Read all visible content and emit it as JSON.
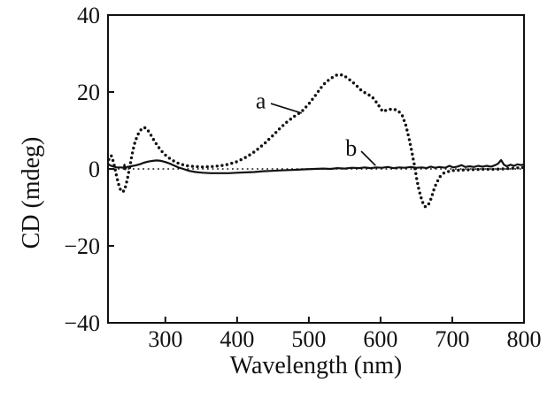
{
  "figure": {
    "background": "#ffffff",
    "ink_color": "#111111"
  },
  "chart_data": {
    "type": "line",
    "title": "",
    "xlabel": "Wavelength (nm)",
    "ylabel": "CD (mdeg)",
    "xlim": [
      220,
      800
    ],
    "ylim": [
      -40,
      40
    ],
    "x_ticks": [
      300,
      400,
      500,
      600,
      700,
      800
    ],
    "x_tick_labels": [
      "300",
      "400",
      "500",
      "600",
      "700",
      "800"
    ],
    "y_ticks": [
      40,
      20,
      0,
      -20,
      -40
    ],
    "y_tick_labels": [
      "40",
      "20",
      "0",
      "−20",
      "−40"
    ],
    "grid": false,
    "zero_line": {
      "show": true,
      "style": "dotted",
      "y": 0
    },
    "frame": true,
    "legend_position": "none",
    "series": [
      {
        "name": "a",
        "style": "dotted",
        "color": "#111111",
        "points": [
          [
            220,
            1.2
          ],
          [
            222,
            3.2
          ],
          [
            225,
            3.4
          ],
          [
            228,
            1.5
          ],
          [
            231,
            -1.0
          ],
          [
            234,
            -3.5
          ],
          [
            237,
            -5.2
          ],
          [
            240,
            -6.0
          ],
          [
            243,
            -5.6
          ],
          [
            246,
            -3.5
          ],
          [
            249,
            -0.8
          ],
          [
            252,
            2.2
          ],
          [
            255,
            5.0
          ],
          [
            258,
            7.2
          ],
          [
            262,
            9.0
          ],
          [
            266,
            10.2
          ],
          [
            270,
            10.8
          ],
          [
            274,
            10.5
          ],
          [
            278,
            9.4
          ],
          [
            283,
            7.8
          ],
          [
            288,
            6.3
          ],
          [
            294,
            4.8
          ],
          [
            300,
            3.6
          ],
          [
            307,
            2.6
          ],
          [
            314,
            1.8
          ],
          [
            322,
            1.2
          ],
          [
            331,
            0.8
          ],
          [
            341,
            0.6
          ],
          [
            352,
            0.5
          ],
          [
            364,
            0.6
          ],
          [
            376,
            0.8
          ],
          [
            388,
            1.2
          ],
          [
            400,
            1.9
          ],
          [
            410,
            2.8
          ],
          [
            420,
            3.9
          ],
          [
            430,
            5.3
          ],
          [
            440,
            6.9
          ],
          [
            450,
            8.7
          ],
          [
            460,
            10.6
          ],
          [
            470,
            12.3
          ],
          [
            480,
            13.7
          ],
          [
            490,
            14.9
          ],
          [
            500,
            16.9
          ],
          [
            508,
            18.8
          ],
          [
            516,
            20.9
          ],
          [
            524,
            22.6
          ],
          [
            532,
            23.7
          ],
          [
            540,
            24.5
          ],
          [
            548,
            24.4
          ],
          [
            556,
            23.3
          ],
          [
            564,
            22.1
          ],
          [
            572,
            20.6
          ],
          [
            580,
            19.6
          ],
          [
            588,
            18.8
          ],
          [
            596,
            16.9
          ],
          [
            603,
            14.9
          ],
          [
            610,
            15.4
          ],
          [
            617,
            15.6
          ],
          [
            624,
            15.2
          ],
          [
            630,
            14.0
          ],
          [
            635,
            11.5
          ],
          [
            639,
            8.5
          ],
          [
            643,
            5.0
          ],
          [
            647,
            1.2
          ],
          [
            650,
            -2.2
          ],
          [
            653,
            -5.0
          ],
          [
            656,
            -7.2
          ],
          [
            659,
            -8.8
          ],
          [
            662,
            -9.8
          ],
          [
            666,
            -9.6
          ],
          [
            670,
            -7.9
          ],
          [
            674,
            -5.6
          ],
          [
            678,
            -3.6
          ],
          [
            683,
            -2.0
          ],
          [
            688,
            -1.1
          ],
          [
            694,
            -0.7
          ],
          [
            702,
            -0.4
          ],
          [
            712,
            -0.3
          ],
          [
            725,
            -0.2
          ],
          [
            740,
            -0.1
          ],
          [
            755,
            -0.1
          ],
          [
            770,
            0.0
          ],
          [
            785,
            0.2
          ],
          [
            800,
            0.4
          ]
        ]
      },
      {
        "name": "b",
        "style": "solid",
        "color": "#111111",
        "points": [
          [
            220,
            1.2
          ],
          [
            226,
            0.7
          ],
          [
            232,
            0.4
          ],
          [
            238,
            0.4
          ],
          [
            242,
            0.3
          ],
          [
            243,
            1.1
          ],
          [
            244,
            -0.1
          ],
          [
            246,
            0.5
          ],
          [
            252,
            0.7
          ],
          [
            258,
            0.9
          ],
          [
            264,
            1.2
          ],
          [
            270,
            1.6
          ],
          [
            276,
            1.9
          ],
          [
            282,
            2.1
          ],
          [
            288,
            2.2
          ],
          [
            294,
            2.1
          ],
          [
            300,
            1.8
          ],
          [
            306,
            1.4
          ],
          [
            312,
            0.9
          ],
          [
            318,
            0.4
          ],
          [
            325,
            0.0
          ],
          [
            333,
            -0.5
          ],
          [
            342,
            -0.8
          ],
          [
            352,
            -1.0
          ],
          [
            363,
            -1.1
          ],
          [
            375,
            -1.1
          ],
          [
            388,
            -1.1
          ],
          [
            400,
            -1.0
          ],
          [
            412,
            -0.9
          ],
          [
            424,
            -0.8
          ],
          [
            436,
            -0.6
          ],
          [
            448,
            -0.5
          ],
          [
            460,
            -0.4
          ],
          [
            472,
            -0.3
          ],
          [
            484,
            -0.2
          ],
          [
            496,
            -0.1
          ],
          [
            508,
            0.0
          ],
          [
            520,
            0.1
          ],
          [
            530,
            0.0
          ],
          [
            540,
            0.2
          ],
          [
            550,
            0.1
          ],
          [
            560,
            0.3
          ],
          [
            570,
            0.2
          ],
          [
            578,
            0.4
          ],
          [
            586,
            0.2
          ],
          [
            594,
            0.4
          ],
          [
            602,
            0.3
          ],
          [
            610,
            0.5
          ],
          [
            618,
            0.2
          ],
          [
            626,
            0.4
          ],
          [
            634,
            0.3
          ],
          [
            642,
            0.5
          ],
          [
            650,
            0.3
          ],
          [
            658,
            0.4
          ],
          [
            664,
            0.2
          ],
          [
            670,
            0.6
          ],
          [
            676,
            0.3
          ],
          [
            682,
            0.5
          ],
          [
            690,
            0.3
          ],
          [
            696,
            0.8
          ],
          [
            701,
            0.4
          ],
          [
            707,
            0.6
          ],
          [
            713,
            1.0
          ],
          [
            718,
            0.5
          ],
          [
            724,
            0.7
          ],
          [
            730,
            0.5
          ],
          [
            736,
            0.8
          ],
          [
            742,
            0.6
          ],
          [
            748,
            0.8
          ],
          [
            754,
            0.6
          ],
          [
            760,
            1.0
          ],
          [
            764,
            1.4
          ],
          [
            768,
            2.3
          ],
          [
            772,
            1.1
          ],
          [
            776,
            0.7
          ],
          [
            781,
            1.1
          ],
          [
            786,
            0.8
          ],
          [
            791,
            1.2
          ],
          [
            796,
            1.0
          ],
          [
            800,
            1.2
          ]
        ]
      }
    ],
    "annotations": [
      {
        "label": "a",
        "x": 433,
        "y": 17.8,
        "leader": {
          "x1": 447,
          "y1": 17.0,
          "x2": 490,
          "y2": 14.5
        }
      },
      {
        "label": "b",
        "x": 559,
        "y": 5.5,
        "leader": {
          "x1": 573,
          "y1": 4.6,
          "x2": 593,
          "y2": 0.9
        }
      }
    ]
  }
}
